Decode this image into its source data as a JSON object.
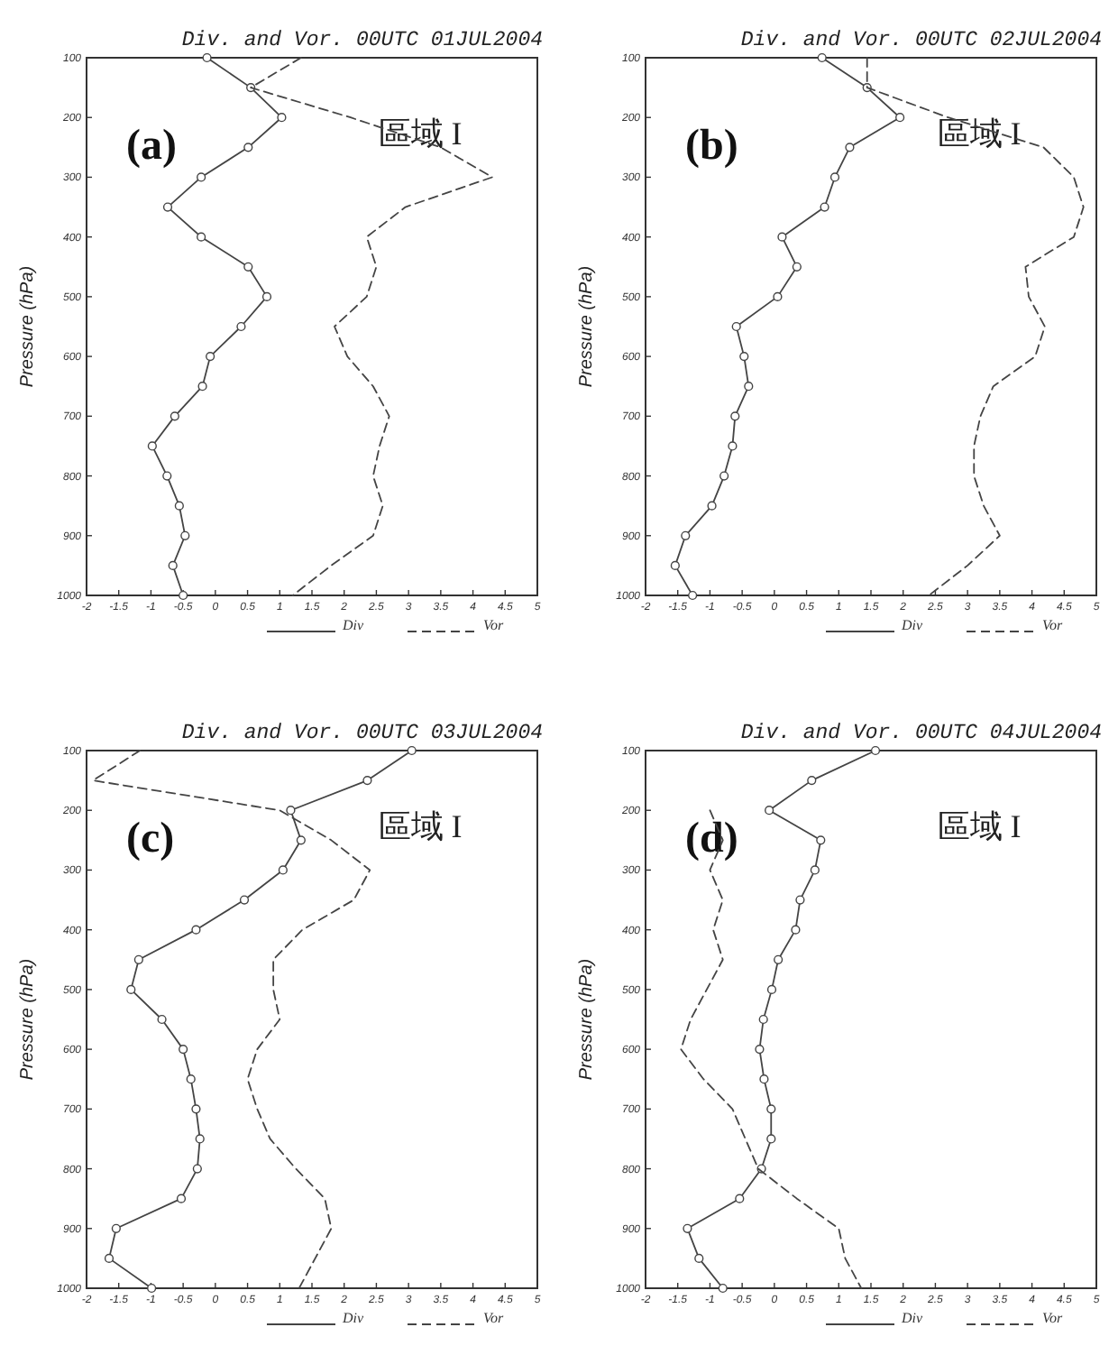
{
  "chart_data": [
    {
      "type": "line",
      "title": "Div. and Vor.    00UTC 01JUL2004",
      "ylabel": "Pressure (hPa)",
      "annotations": [
        "(a)",
        "區域 I"
      ],
      "xlim": [
        -2,
        5
      ],
      "ylim": [
        1000,
        100
      ],
      "xticks": [
        -2,
        -1.5,
        -1,
        -0.5,
        0,
        0.5,
        1,
        1.5,
        2,
        2.5,
        3,
        3.5,
        4,
        4.5,
        5
      ],
      "yticks": [
        100,
        200,
        300,
        400,
        500,
        600,
        700,
        800,
        900,
        1000
      ],
      "legend": "bottom right",
      "grid": false,
      "series": [
        {
          "name": "Div",
          "color": "#444444",
          "marker": "circle",
          "line_style": "solid",
          "x": [
            -0.13,
            0.55,
            1.03,
            0.51,
            -0.22,
            -0.74,
            -0.22,
            0.51,
            0.8,
            0.4,
            -0.08,
            -0.2,
            -0.63,
            -0.98,
            -0.75,
            -0.56,
            -0.47,
            -0.66,
            -0.5
          ],
          "values": [
            100,
            150,
            200,
            250,
            300,
            350,
            400,
            450,
            500,
            550,
            600,
            650,
            700,
            750,
            800,
            850,
            900,
            950,
            1000
          ]
        },
        {
          "name": "Vor",
          "color": "#444444",
          "marker": "none",
          "line_style": "dashed",
          "x": [
            1.33,
            0.55,
            2.1,
            3.5,
            4.3,
            2.95,
            2.35,
            2.5,
            2.35,
            1.85,
            2.05,
            2.45,
            2.7,
            2.55,
            2.45,
            2.6,
            2.45,
            1.8,
            1.2
          ],
          "values": [
            100,
            150,
            200,
            250,
            300,
            350,
            400,
            450,
            500,
            550,
            600,
            650,
            700,
            750,
            800,
            850,
            900,
            950,
            1000
          ]
        }
      ]
    },
    {
      "type": "line",
      "title": "Div. and Vor.    00UTC 02JUL2004",
      "ylabel": "Pressure (hPa)",
      "annotations": [
        "(b)",
        "區域 I"
      ],
      "xlim": [
        -2,
        5
      ],
      "ylim": [
        1000,
        100
      ],
      "xticks": [
        -2,
        -1.5,
        -1,
        -0.5,
        0,
        0.5,
        1,
        1.5,
        2,
        2.5,
        3,
        3.5,
        4,
        4.5,
        5
      ],
      "yticks": [
        100,
        200,
        300,
        400,
        500,
        600,
        700,
        800,
        900,
        1000
      ],
      "legend": "bottom right",
      "grid": false,
      "series": [
        {
          "name": "Div",
          "color": "#444444",
          "marker": "circle",
          "line_style": "solid",
          "x": [
            0.74,
            1.44,
            1.95,
            1.17,
            0.94,
            0.78,
            0.12,
            0.35,
            0.05,
            -0.59,
            -0.47,
            -0.4,
            -0.61,
            -0.65,
            -0.78,
            -0.97,
            -1.38,
            -1.54,
            -1.27
          ],
          "values": [
            100,
            150,
            200,
            250,
            300,
            350,
            400,
            450,
            500,
            550,
            600,
            650,
            700,
            750,
            800,
            850,
            900,
            950,
            1000
          ]
        },
        {
          "name": "Vor",
          "color": "#444444",
          "marker": "none",
          "line_style": "dashed",
          "x": [
            1.44,
            1.44,
            2.7,
            4.18,
            4.65,
            4.8,
            4.65,
            3.9,
            3.95,
            4.2,
            4.05,
            3.4,
            3.2,
            3.1,
            3.1,
            3.25,
            3.5,
            3.0,
            2.4
          ],
          "values": [
            100,
            150,
            200,
            250,
            300,
            350,
            400,
            450,
            500,
            550,
            600,
            650,
            700,
            750,
            800,
            850,
            900,
            950,
            1000
          ]
        }
      ]
    },
    {
      "type": "line",
      "title": "Div. and Vor.    00UTC 03JUL2004",
      "ylabel": "Pressure (hPa)",
      "annotations": [
        "(c)",
        "區域 I"
      ],
      "xlim": [
        -2,
        5
      ],
      "ylim": [
        1000,
        100
      ],
      "xticks": [
        -2,
        -1.5,
        -1,
        -0.5,
        0,
        0.5,
        1,
        1.5,
        2,
        2.5,
        3,
        3.5,
        4,
        4.5,
        5
      ],
      "yticks": [
        100,
        200,
        300,
        400,
        500,
        600,
        700,
        800,
        900,
        1000
      ],
      "legend": "bottom right",
      "grid": false,
      "series": [
        {
          "name": "Div",
          "color": "#444444",
          "marker": "circle",
          "line_style": "solid",
          "x": [
            3.05,
            2.36,
            1.17,
            1.33,
            1.05,
            0.45,
            -0.3,
            -1.19,
            -1.31,
            -0.83,
            -0.5,
            -0.38,
            -0.3,
            -0.24,
            -0.28,
            -0.53,
            -1.54,
            -1.65,
            -0.99
          ],
          "values": [
            100,
            150,
            200,
            250,
            300,
            350,
            400,
            450,
            500,
            550,
            600,
            650,
            700,
            750,
            800,
            850,
            900,
            950,
            1000
          ]
        },
        {
          "name": "Vor",
          "color": "#444444",
          "marker": "none",
          "line_style": "dashed",
          "x": [
            -1.17,
            -1.9,
            1.0,
            1.8,
            2.4,
            2.15,
            1.35,
            0.9,
            0.9,
            1.0,
            0.65,
            0.5,
            0.65,
            0.85,
            1.25,
            1.7,
            1.8,
            1.55,
            1.3
          ],
          "values": [
            100,
            150,
            200,
            250,
            300,
            350,
            400,
            450,
            500,
            550,
            600,
            650,
            700,
            750,
            800,
            850,
            900,
            950,
            1000
          ]
        }
      ]
    },
    {
      "type": "line",
      "title": "Div. and Vor.    00UTC 04JUL2004",
      "ylabel": "Pressure (hPa)",
      "annotations": [
        "(d)",
        "區域 I"
      ],
      "xlim": [
        -2,
        5
      ],
      "ylim": [
        1000,
        100
      ],
      "xticks": [
        -2,
        -1.5,
        -1,
        -0.5,
        0,
        0.5,
        1,
        1.5,
        2,
        2.5,
        3,
        3.5,
        4,
        4.5,
        5
      ],
      "yticks": [
        100,
        200,
        300,
        400,
        500,
        600,
        700,
        800,
        900,
        1000
      ],
      "legend": "bottom right",
      "grid": false,
      "series": [
        {
          "name": "Div",
          "color": "#444444",
          "marker": "circle",
          "line_style": "solid",
          "x": [
            1.57,
            0.58,
            -0.08,
            0.72,
            0.63,
            0.4,
            0.33,
            0.06,
            -0.04,
            -0.17,
            -0.23,
            -0.16,
            -0.05,
            -0.05,
            -0.2,
            -0.54,
            -1.35,
            -1.17,
            -0.8
          ],
          "values": [
            100,
            150,
            200,
            250,
            300,
            350,
            400,
            450,
            500,
            550,
            600,
            650,
            700,
            750,
            800,
            850,
            900,
            950,
            1000
          ]
        },
        {
          "name": "Vor",
          "color": "#444444",
          "marker": "none",
          "line_style": "dashed",
          "x": [
            -1.0,
            -0.8,
            -1.0,
            -0.8,
            -0.95,
            -0.8,
            -1.05,
            -1.3,
            -1.45,
            -1.1,
            -0.65,
            -0.45,
            -0.25,
            0.35,
            1.0,
            1.1,
            1.35
          ],
          "values": [
            200,
            250,
            300,
            350,
            400,
            450,
            500,
            550,
            600,
            650,
            700,
            750,
            800,
            850,
            900,
            950,
            1000
          ]
        }
      ]
    }
  ]
}
